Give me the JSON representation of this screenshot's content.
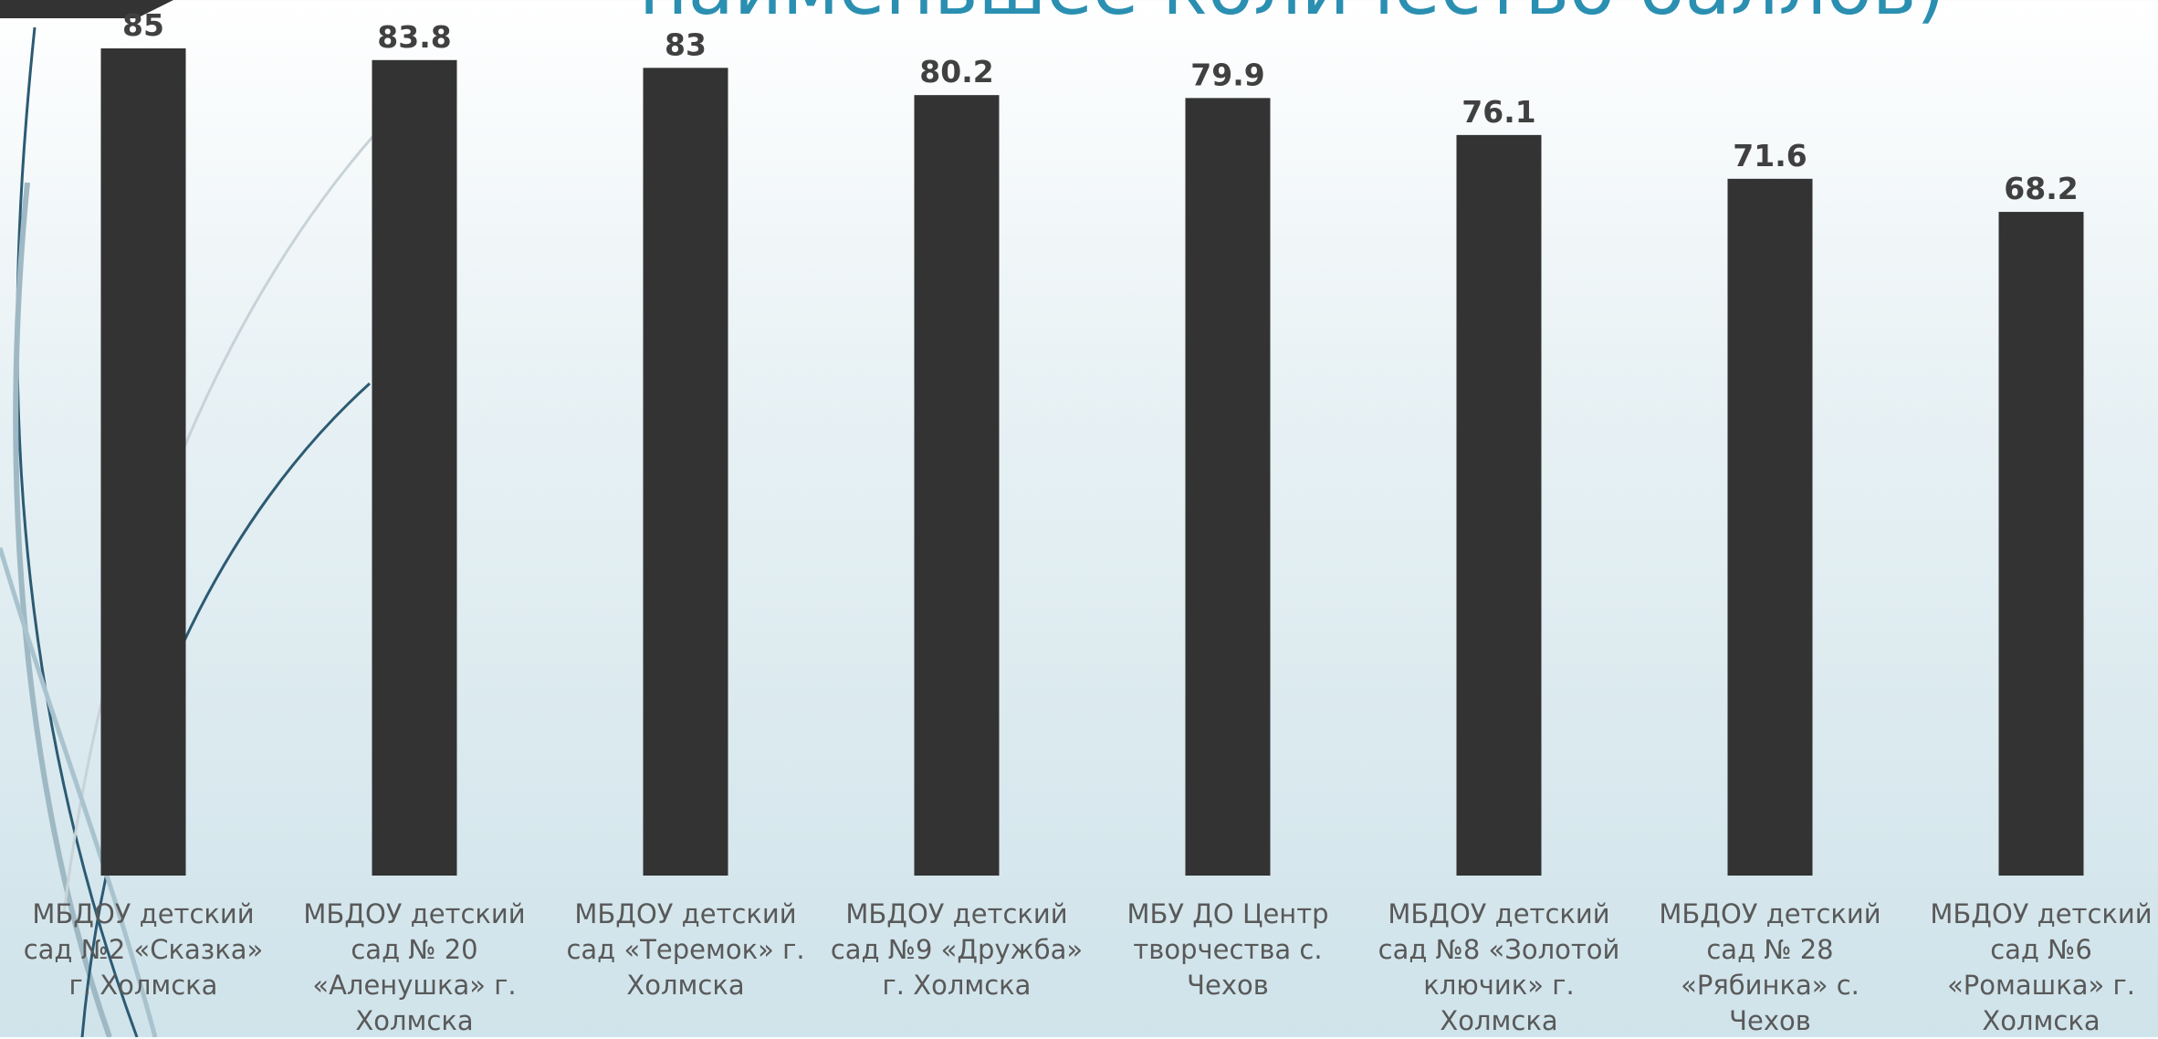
{
  "chart_data": {
    "type": "bar",
    "title": "наименьшее количество баллов)",
    "categories": [
      "МБДОУ детский сад №2 «Сказка» г. Холмска",
      "МБДОУ детский сад № 20 «Аленушка» г. Холмска",
      "МБДОУ детский сад «Теремок» г. Холмска",
      "МБДОУ детский сад №9 «Дружба» г. Холмска",
      "МБУ ДО Центр творчества с. Чехов",
      "МБДОУ детский сад №8 «Золотой ключик» г. Холмска",
      "МБДОУ детский сад № 28 «Рябинка» с. Чехов",
      "МБДОУ детский сад №6 «Ромашка» г. Холмска"
    ],
    "values": [
      85,
      83.8,
      83,
      80.2,
      79.9,
      76.1,
      71.6,
      68.2
    ],
    "color": "#333333"
  }
}
